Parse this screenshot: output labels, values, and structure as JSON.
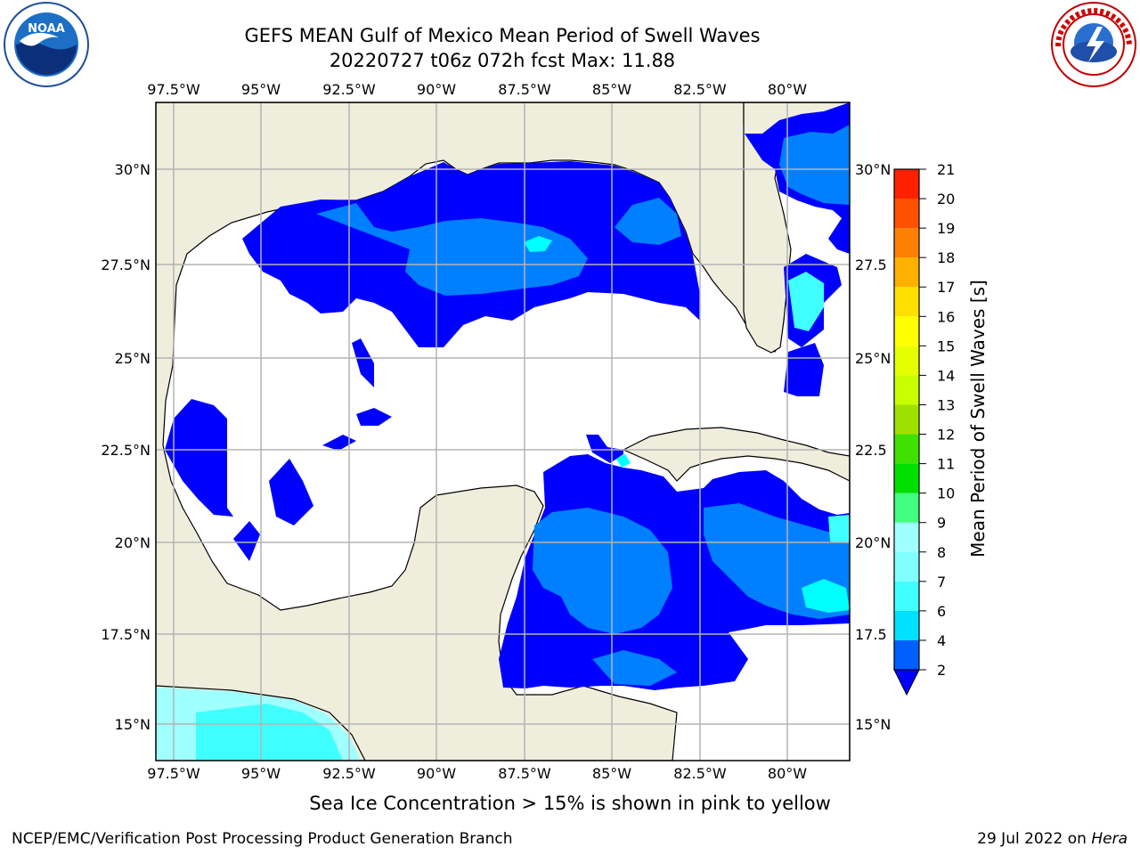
{
  "title": {
    "line1": "GEFS MEAN Gulf of Mexico Mean Period of Swell Waves",
    "line2": "20220727 t06z 072h fcst   Max: 11.88"
  },
  "map": {
    "lon_ticks": [
      "97.5°W",
      "95°W",
      "92.5°W",
      "90°W",
      "87.5°W",
      "85°W",
      "82.5°W",
      "80°W"
    ],
    "lat_ticks_left": [
      "30°N",
      "27.5°N",
      "25°N",
      "22.5°N",
      "20°N",
      "17.5°N",
      "15°N"
    ],
    "lat_ticks_right": [
      "30°N",
      "27.5",
      "25°N",
      "22.5",
      "20°N",
      "17.5",
      "15°N"
    ],
    "land_color": "#efeedd",
    "ocean_color": "#ffffff",
    "grid_color": "#b4b4b4"
  },
  "colorbar": {
    "label": "Mean Period of Swell Waves [s]",
    "levels": [
      "2",
      "4",
      "6",
      "7",
      "8",
      "9",
      "10",
      "11",
      "12",
      "13",
      "14",
      "15",
      "16",
      "17",
      "18",
      "19",
      "20",
      "21"
    ],
    "colors": [
      "#0060ff",
      "#00e0ff",
      "#40ffff",
      "#80ffff",
      "#a0ffff",
      "#40ff80",
      "#00e000",
      "#40e000",
      "#a0e000",
      "#c8ff00",
      "#e6ff00",
      "#ffff00",
      "#ffe000",
      "#ffb000",
      "#ff8000",
      "#ff5000",
      "#ff2000",
      "#ff0000"
    ],
    "extend_color": "#0000ff"
  },
  "note": "Sea Ice Concentration > 15% is shown in pink to yellow",
  "footer": {
    "credit": "NCEP/EMC/Verification Post Processing Product Generation Branch",
    "date": "29 Jul 2022 on",
    "host": "Hera"
  },
  "logos": {
    "left": "NOAA",
    "right": "NATIONAL WEATHER SERVICE"
  }
}
